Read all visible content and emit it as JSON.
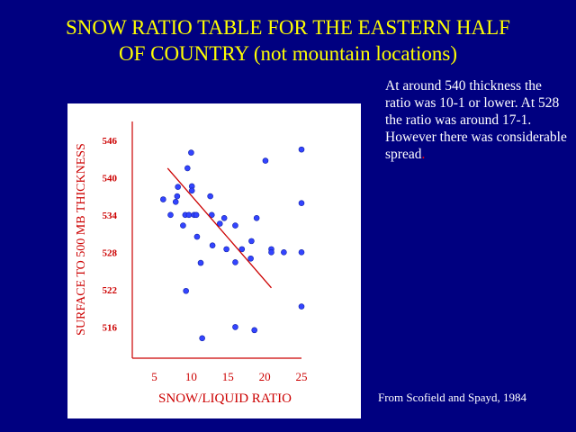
{
  "title": {
    "line1": "SNOW RATIO TABLE FOR THE EASTERN HALF",
    "line2": "OF COUNTRY (not mountain locations)"
  },
  "note": {
    "text": "At around 540 thickness the ratio was 10-1 or lower.  At 528 the ratio was around 17-1. However there was considerable spread",
    "end_mark": "."
  },
  "source": "From Scofield and Spayd, 1984",
  "colors": {
    "background": "#000080",
    "title": "#ffff00",
    "axis_text": "#cc0000",
    "points": "#3344ff",
    "trend": "#cc0000"
  },
  "chart_data": {
    "type": "scatter",
    "xlabel": "SNOW/LIQUID RATIO",
    "ylabel": "SURFACE TO 500  MB THICKNESS",
    "xlim": [
      2,
      25
    ],
    "ylim": [
      511,
      549
    ],
    "x_ticks": [
      "5",
      "10",
      "15",
      "20",
      "25"
    ],
    "y_ticks": [
      "516",
      "522",
      "528",
      "534",
      "540",
      "546"
    ],
    "grid": false,
    "series": [
      {
        "points": [
          [
            6.2,
            536.5
          ],
          [
            7.2,
            534.0
          ],
          [
            7.9,
            536.1
          ],
          [
            8.1,
            537.0
          ],
          [
            8.2,
            538.5
          ],
          [
            8.9,
            532.3
          ],
          [
            9.2,
            534.0
          ],
          [
            9.3,
            521.8
          ],
          [
            9.5,
            541.5
          ],
          [
            9.7,
            534.0
          ],
          [
            10.0,
            544.0
          ],
          [
            10.1,
            538.6
          ],
          [
            10.1,
            537.9
          ],
          [
            10.4,
            534.0
          ],
          [
            10.7,
            534.0
          ],
          [
            10.8,
            530.5
          ],
          [
            11.3,
            526.3
          ],
          [
            11.5,
            514.2
          ],
          [
            12.6,
            537.0
          ],
          [
            12.8,
            534.0
          ],
          [
            12.9,
            529.1
          ],
          [
            13.9,
            532.6
          ],
          [
            14.5,
            533.5
          ],
          [
            14.8,
            528.5
          ],
          [
            16.0,
            526.4
          ],
          [
            16.0,
            532.3
          ],
          [
            16.0,
            516.0
          ],
          [
            16.9,
            528.5
          ],
          [
            18.1,
            527.0
          ],
          [
            18.2,
            529.8
          ],
          [
            18.9,
            533.5
          ],
          [
            18.6,
            515.5
          ],
          [
            20.1,
            542.7
          ],
          [
            20.9,
            528.5
          ],
          [
            20.9,
            528.0
          ],
          [
            22.6,
            528.0
          ],
          [
            25.0,
            544.5
          ],
          [
            25.0,
            535.9
          ],
          [
            25.0,
            528.0
          ],
          [
            25.0,
            519.3
          ]
        ]
      }
    ],
    "trend_line": [
      [
        6.8,
        541.5
      ],
      [
        20.9,
        522.3
      ]
    ]
  }
}
